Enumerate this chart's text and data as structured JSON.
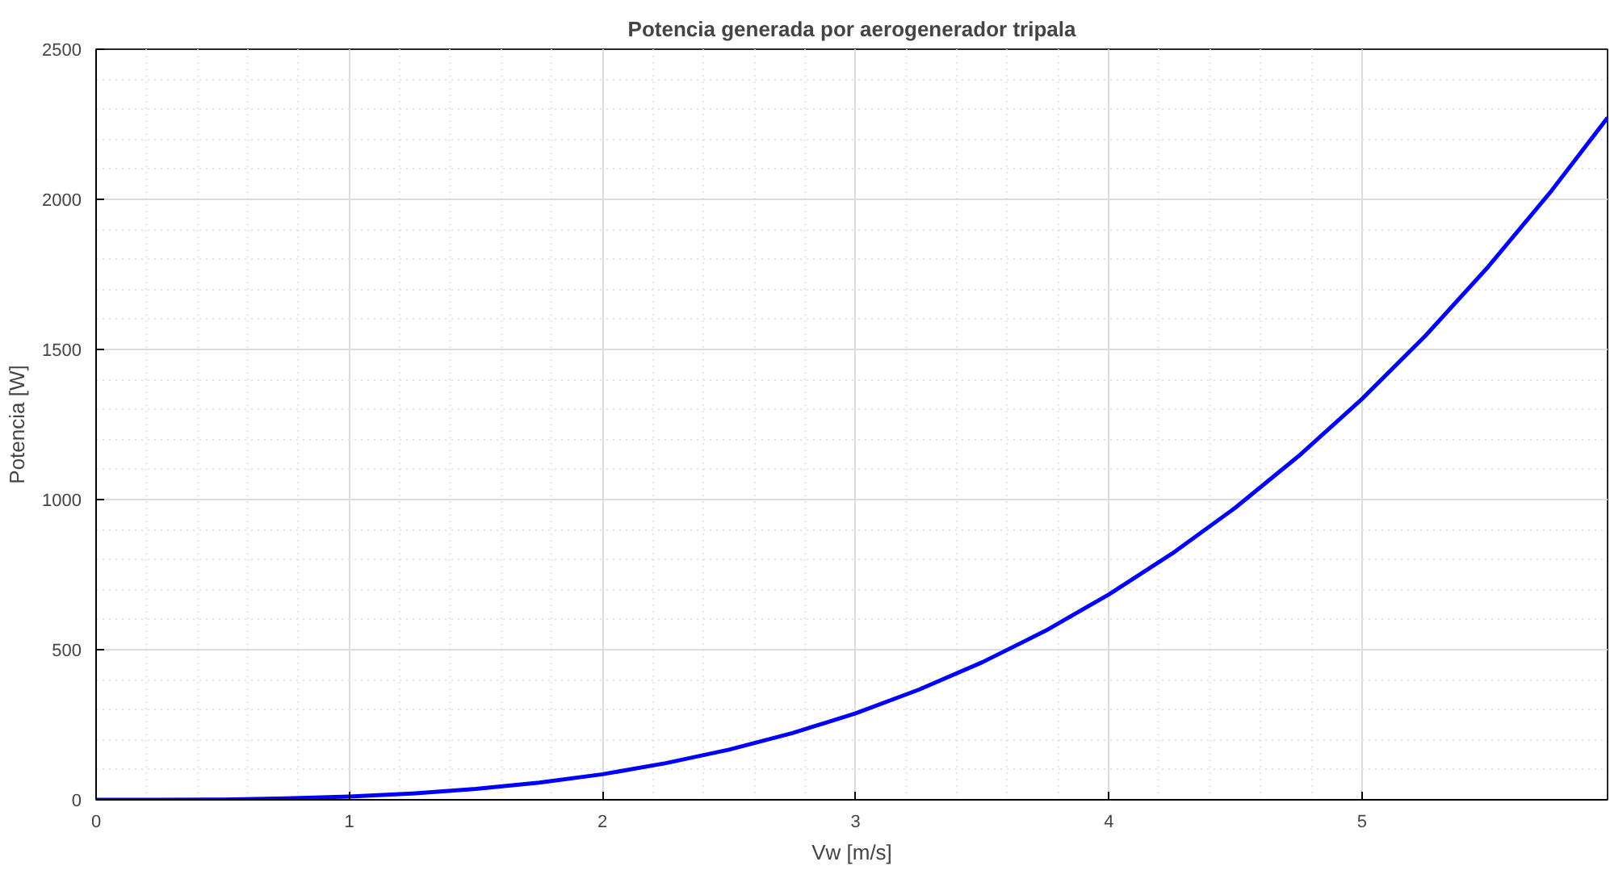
{
  "chart_data": {
    "type": "line",
    "title": "Potencia generada por aerogenerador tripala",
    "xlabel": "Vw [m/s]",
    "ylabel": "Potencia [W]",
    "x": [
      0,
      0.25,
      0.5,
      0.75,
      1,
      1.25,
      1.5,
      1.75,
      2,
      2.25,
      2.5,
      2.75,
      3,
      3.25,
      3.5,
      3.75,
      4,
      4.25,
      4.5,
      4.75,
      5,
      5.25,
      5.5,
      5.75,
      5.97
    ],
    "series": [
      {
        "color": "#0000ff",
        "values": [
          0,
          0,
          1,
          5,
          11,
          21,
          36,
          57,
          85,
          122,
          167,
          222,
          288,
          367,
          458,
          563,
          684,
          820,
          973,
          1145,
          1335,
          1545,
          1777,
          2030,
          2272
        ]
      }
    ],
    "xlim": [
      0,
      5.97
    ],
    "ylim": [
      0,
      2500
    ],
    "xticks": [
      0,
      1,
      2,
      3,
      4,
      5
    ],
    "yticks": [
      0,
      500,
      1000,
      1500,
      2000,
      2500
    ],
    "grid": true,
    "marker": "none",
    "line_style": "solid"
  }
}
